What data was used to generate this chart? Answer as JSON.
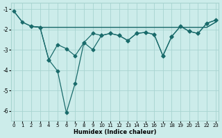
{
  "xlabel": "Humidex (Indice chaleur)",
  "bg_color": "#ccecea",
  "line_color": "#1a6b6b",
  "grid_color": "#a8d4d0",
  "line1": {
    "x": [
      0,
      1,
      2,
      3,
      4,
      5,
      6,
      7,
      8,
      9,
      10,
      11,
      12,
      13,
      14,
      15,
      16,
      17,
      18,
      19,
      20,
      21,
      22,
      23
    ],
    "y": [
      -1.1,
      -1.65,
      -1.85,
      -1.9,
      -1.9,
      -1.9,
      -1.9,
      -1.9,
      -1.9,
      -1.9,
      -1.9,
      -1.9,
      -1.9,
      -1.9,
      -1.9,
      -1.9,
      -1.9,
      -1.9,
      -1.9,
      -1.9,
      -1.9,
      -1.9,
      -1.9,
      -1.65
    ],
    "markers": false
  },
  "line2": {
    "x": [
      2,
      3,
      4,
      5,
      6,
      7,
      8,
      9,
      10,
      11,
      12,
      13,
      14,
      15,
      16,
      17,
      18,
      19,
      20,
      21,
      22,
      23
    ],
    "y": [
      -1.85,
      -1.9,
      -1.9,
      -1.9,
      -1.9,
      -1.9,
      -1.9,
      -1.9,
      -1.9,
      -1.9,
      -1.9,
      -1.9,
      -1.9,
      -1.9,
      -1.9,
      -1.9,
      -1.9,
      -1.9,
      -1.9,
      -1.9,
      -1.9,
      -1.65
    ],
    "markers": false
  },
  "line3": {
    "x": [
      2,
      3,
      4,
      5,
      6,
      7,
      8,
      9,
      10,
      11,
      12,
      13,
      14,
      15,
      16,
      17,
      18,
      19,
      20,
      21,
      22,
      23
    ],
    "y": [
      -1.85,
      -1.9,
      -3.5,
      -2.75,
      -2.95,
      -3.3,
      -2.65,
      -2.2,
      -2.3,
      -2.2,
      -2.3,
      -2.55,
      -2.2,
      -2.15,
      -2.25,
      -3.3,
      -2.35,
      -1.85,
      -2.1,
      -2.2,
      -1.7,
      -1.55
    ],
    "markers": true
  },
  "line4": {
    "x": [
      0,
      1,
      2,
      3,
      4,
      5,
      6,
      7,
      8,
      9,
      10,
      11,
      12,
      13,
      14,
      15,
      16,
      17,
      18,
      19,
      20,
      21,
      22,
      23
    ],
    "y": [
      -1.1,
      -1.65,
      -1.85,
      -1.9,
      -3.5,
      -4.05,
      -6.1,
      -4.65,
      -2.65,
      -3.0,
      -2.3,
      -2.2,
      -2.3,
      -2.55,
      -2.2,
      -2.15,
      -2.25,
      -3.3,
      -2.35,
      -1.85,
      -2.1,
      -2.2,
      -1.7,
      -1.55
    ],
    "markers": true
  },
  "xlim": [
    0,
    23
  ],
  "ylim": [
    -6.5,
    -0.7
  ],
  "yticks": [
    -1,
    -2,
    -3,
    -4,
    -5,
    -6
  ],
  "xticks": [
    0,
    1,
    2,
    3,
    4,
    5,
    6,
    7,
    8,
    9,
    10,
    11,
    12,
    13,
    14,
    15,
    16,
    17,
    18,
    19,
    20,
    21,
    22,
    23
  ],
  "markersize": 2.5,
  "linewidth": 0.9
}
